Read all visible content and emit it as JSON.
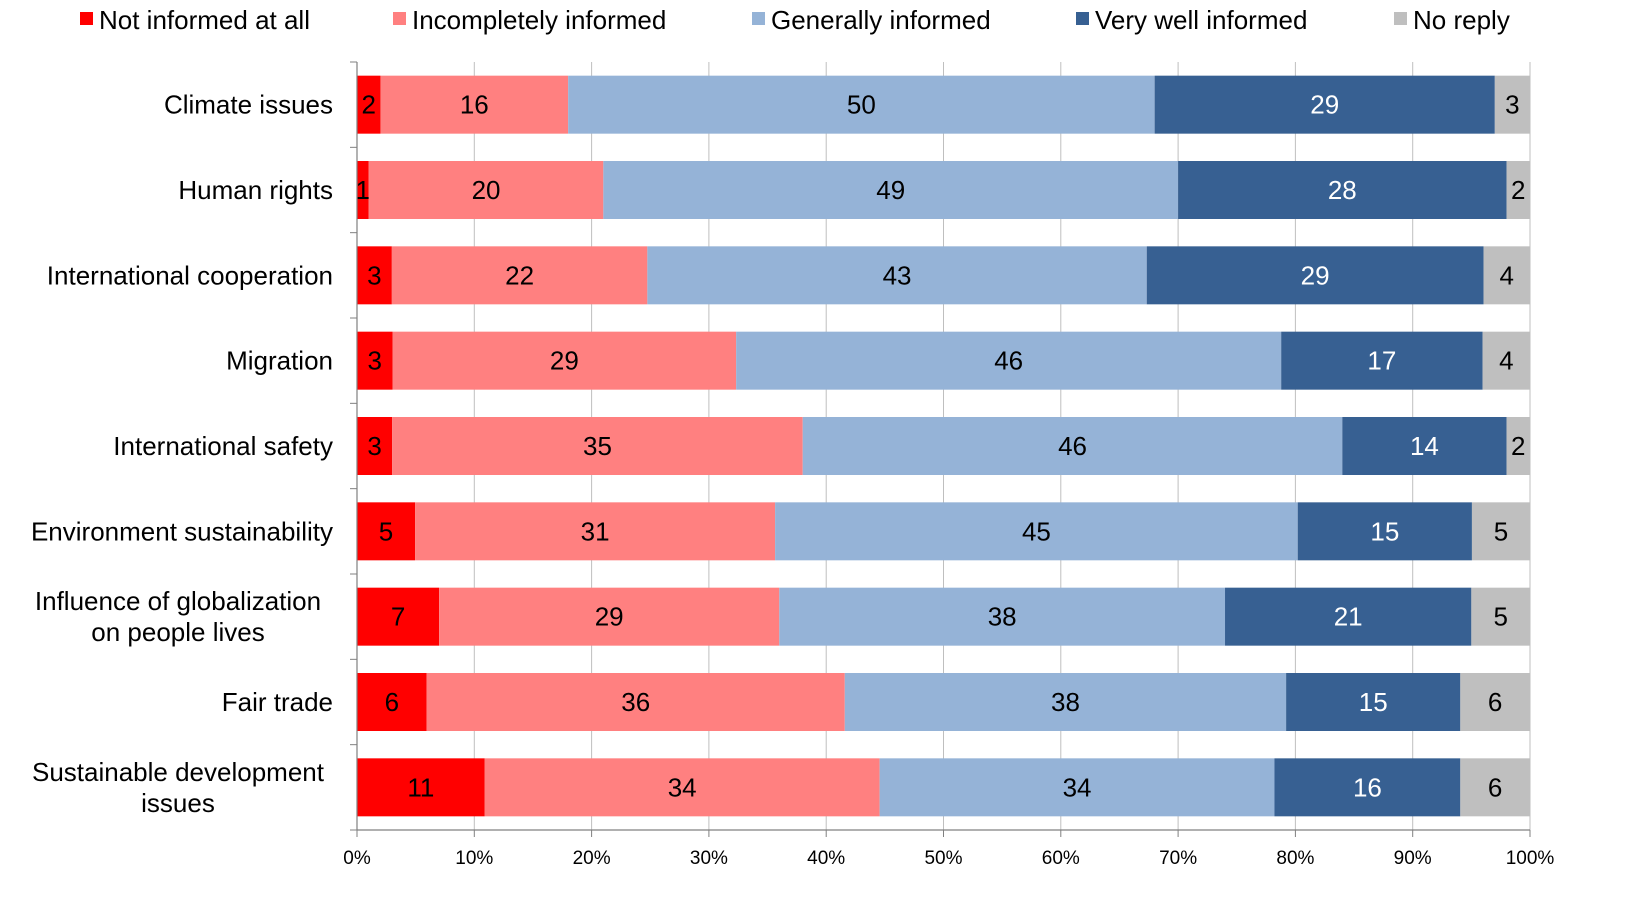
{
  "chart_data": {
    "type": "bar",
    "orientation": "horizontal",
    "stacked": true,
    "percent_stacked": true,
    "categories": [
      "Climate issues",
      "Human rights",
      "International cooperation",
      "Migration",
      "International safety",
      "Environment sustainability",
      "Influence of globalization\non people lives",
      "Fair trade",
      "Sustainable development\nissues"
    ],
    "series": [
      {
        "name": "Not informed at all",
        "color": "#ff0000",
        "values": [
          2,
          1,
          3,
          3,
          3,
          5,
          7,
          6,
          11
        ]
      },
      {
        "name": "Incompletely informed",
        "color": "#ff8080",
        "values": [
          16,
          20,
          22,
          29,
          35,
          31,
          29,
          36,
          34
        ]
      },
      {
        "name": "Generally informed",
        "color": "#95b3d7",
        "values": [
          50,
          49,
          43,
          46,
          46,
          45,
          38,
          38,
          34
        ]
      },
      {
        "name": "Very well informed",
        "color": "#376092",
        "values": [
          29,
          28,
          29,
          17,
          14,
          15,
          21,
          15,
          16
        ]
      },
      {
        "name": "No reply",
        "color": "#bfbfbf",
        "values": [
          3,
          2,
          4,
          4,
          2,
          5,
          5,
          6,
          6
        ]
      }
    ],
    "label_colors": [
      "#000000",
      "#000000",
      "#000000",
      "#ffffff",
      "#000000"
    ],
    "x_ticks": [
      "0%",
      "10%",
      "20%",
      "30%",
      "40%",
      "50%",
      "60%",
      "70%",
      "80%",
      "90%",
      "100%"
    ],
    "xlim": [
      0,
      100
    ],
    "legend_position": "top",
    "grid": "vertical"
  }
}
